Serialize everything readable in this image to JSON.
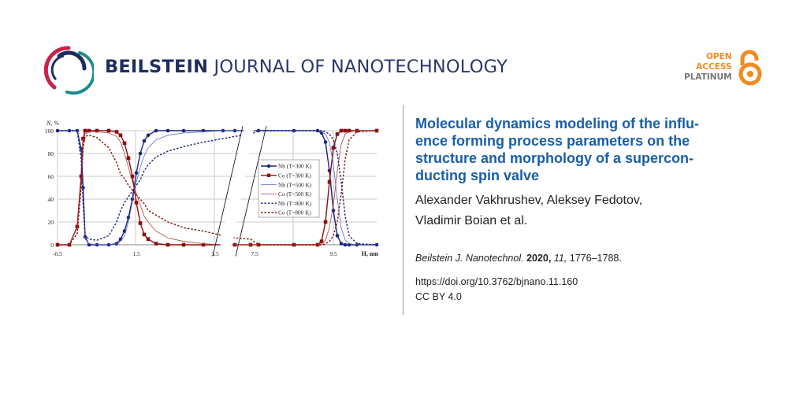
{
  "header": {
    "journal_bold": "BEILSTEIN",
    "journal_rest": "JOURNAL OF NANOTECHNOLOGY",
    "open_access": [
      "OPEN",
      "ACCESS",
      "PLATINUM"
    ],
    "colors": {
      "navy": "#1f2d5c",
      "teal": "#1c8c8c",
      "crimson": "#c8234a",
      "orange": "#f28a1f"
    }
  },
  "article": {
    "title_lines": [
      "Molecular dynamics modeling of the influ-",
      "ence forming process parameters on the",
      "structure and morphology of a supercon-",
      "ducting spin valve"
    ],
    "author_lines": [
      "Alexander Vakhrushev, Aleksey Fedotov,",
      "Vladimir Boian et al."
    ],
    "citation": {
      "journal": "Beilstein J. Nanotechnol.",
      "year": "2020,",
      "volume": "11,",
      "pages": "1776–1788."
    },
    "doi": "https://doi.org/10.3762/bjnano.11.160",
    "license": "CC BY 4.0"
  },
  "chart_data": {
    "type": "line",
    "ylabel": "N, %",
    "xlabel": "H, nm",
    "ylim": [
      0,
      100
    ],
    "yticks": [
      "0",
      "20",
      "40",
      "60",
      "80",
      "100"
    ],
    "xticks": [
      "-0.5",
      "1.5",
      "3.5",
      "7.5",
      "9.5"
    ],
    "x_axis_break": [
      4.4,
      7.6
    ],
    "grid": true,
    "legend_position": "center-right",
    "x": [
      -0.5,
      -0.2,
      0.0,
      0.1,
      0.15,
      0.2,
      0.3,
      0.5,
      0.8,
      1.0,
      1.1,
      1.2,
      1.3,
      1.4,
      1.5,
      1.6,
      1.7,
      1.8,
      2.0,
      2.3,
      2.7,
      3.2,
      3.7,
      4.0,
      4.4,
      7.6,
      8.5,
      9.1,
      9.2,
      9.3,
      9.4,
      9.5,
      9.6,
      9.7,
      9.8,
      9.9,
      10.1,
      10.6
    ],
    "series": [
      {
        "name": "Nb (T=300 K)",
        "color": "#1a237e",
        "style": "marker-circle",
        "values": [
          100,
          100,
          100,
          84,
          50,
          7,
          0,
          0,
          0,
          1,
          5,
          12,
          24,
          40,
          63,
          80,
          91,
          96,
          100,
          100,
          100,
          100,
          100,
          100,
          100,
          100,
          100,
          100,
          98,
          90,
          65,
          30,
          8,
          1,
          0,
          0,
          0,
          0
        ]
      },
      {
        "name": "Co (T=300 K)",
        "color": "#8b0f0f",
        "style": "marker-square",
        "values": [
          0,
          0,
          16,
          60,
          93,
          100,
          100,
          100,
          100,
          99,
          96,
          89,
          76,
          60,
          37,
          19,
          9,
          5,
          1,
          0,
          0,
          0,
          0,
          0,
          0,
          0,
          0,
          0,
          3,
          20,
          55,
          85,
          97,
          100,
          100,
          100,
          100,
          100
        ]
      },
      {
        "name": "Nb (T=500 K)",
        "color": "#5c6bc0",
        "style": "thin",
        "values": [
          100,
          100,
          100,
          80,
          40,
          5,
          1,
          0,
          0,
          1,
          3,
          8,
          20,
          38,
          55,
          68,
          78,
          85,
          92,
          96,
          98,
          99,
          100,
          100,
          100,
          100,
          100,
          100,
          99,
          97,
          90,
          70,
          40,
          15,
          4,
          1,
          0,
          0
        ]
      },
      {
        "name": "Co (T=500 K)",
        "color": "#b34040",
        "style": "thin",
        "values": [
          0,
          0,
          15,
          55,
          90,
          97,
          99,
          99,
          98,
          95,
          90,
          80,
          68,
          55,
          45,
          35,
          25,
          20,
          12,
          6,
          3,
          1,
          0,
          0,
          0,
          0,
          0,
          0,
          1,
          4,
          15,
          35,
          65,
          88,
          97,
          99,
          100,
          100
        ]
      },
      {
        "name": "Nb (T=800 K)",
        "color": "#1a237e",
        "style": "dashed",
        "values": [
          100,
          100,
          100,
          75,
          35,
          8,
          5,
          4,
          8,
          20,
          30,
          37,
          42,
          47,
          52,
          57,
          65,
          70,
          77,
          82,
          86,
          90,
          93,
          95,
          97,
          100,
          100,
          100,
          100,
          99,
          97,
          92,
          80,
          55,
          25,
          8,
          1,
          0
        ]
      },
      {
        "name": "Co (T=800 K)",
        "color": "#8b0f0f",
        "style": "dashed",
        "values": [
          0,
          0,
          10,
          50,
          85,
          95,
          96,
          94,
          85,
          72,
          62,
          58,
          52,
          48,
          44,
          40,
          36,
          30,
          26,
          20,
          15,
          12,
          8,
          6,
          5,
          0,
          0,
          0,
          0,
          1,
          3,
          8,
          20,
          45,
          75,
          92,
          99,
          100
        ]
      }
    ]
  }
}
